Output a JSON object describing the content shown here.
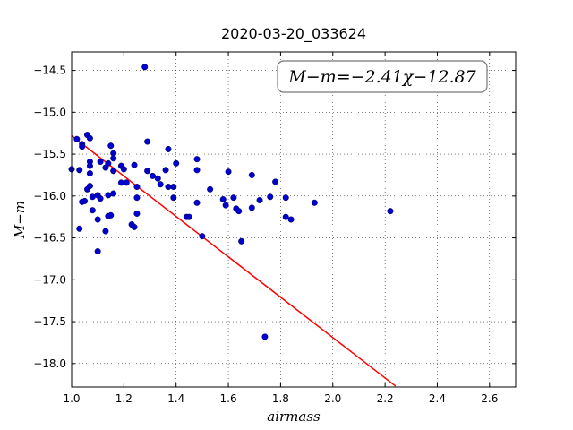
{
  "chart_data": {
    "type": "scatter",
    "title": "2020-03-20_033624",
    "xlabel": "airmass",
    "ylabel": "M−m",
    "xlim": [
      1.0,
      2.7
    ],
    "ylim": [
      -18.28,
      -14.28
    ],
    "xticks": [
      "1.0",
      "1.2",
      "1.4",
      "1.6",
      "1.8",
      "2.0",
      "2.2",
      "2.4",
      "2.6"
    ],
    "yticks": [
      "−14.5",
      "−15.0",
      "−15.5",
      "−16.0",
      "−16.5",
      "−17.0",
      "−17.5",
      "−18.0"
    ],
    "grid": true,
    "annotation": "M−m=−2.41χ−12.87",
    "fit": {
      "slope": -2.41,
      "intercept": -12.87,
      "x_range": [
        1.0,
        2.24
      ]
    },
    "colors": {
      "points": "#0000cc",
      "fit_line": "#ff0000"
    },
    "points": [
      {
        "x": 1.0,
        "y": -15.68
      },
      {
        "x": 1.03,
        "y": -15.69
      },
      {
        "x": 1.02,
        "y": -15.32
      },
      {
        "x": 1.04,
        "y": -15.38
      },
      {
        "x": 1.04,
        "y": -15.41
      },
      {
        "x": 1.06,
        "y": -15.27
      },
      {
        "x": 1.07,
        "y": -15.31
      },
      {
        "x": 1.07,
        "y": -15.59
      },
      {
        "x": 1.07,
        "y": -15.64
      },
      {
        "x": 1.07,
        "y": -15.73
      },
      {
        "x": 1.06,
        "y": -15.92
      },
      {
        "x": 1.07,
        "y": -15.88
      },
      {
        "x": 1.04,
        "y": -16.07
      },
      {
        "x": 1.05,
        "y": -16.06
      },
      {
        "x": 1.08,
        "y": -16.01
      },
      {
        "x": 1.1,
        "y": -15.99
      },
      {
        "x": 1.11,
        "y": -16.03
      },
      {
        "x": 1.08,
        "y": -16.17
      },
      {
        "x": 1.1,
        "y": -16.28
      },
      {
        "x": 1.03,
        "y": -16.39
      },
      {
        "x": 1.1,
        "y": -16.66
      },
      {
        "x": 1.11,
        "y": -15.59
      },
      {
        "x": 1.13,
        "y": -15.66
      },
      {
        "x": 1.14,
        "y": -15.61
      },
      {
        "x": 1.15,
        "y": -15.4
      },
      {
        "x": 1.16,
        "y": -15.49
      },
      {
        "x": 1.16,
        "y": -15.55
      },
      {
        "x": 1.16,
        "y": -15.7
      },
      {
        "x": 1.14,
        "y": -15.99
      },
      {
        "x": 1.16,
        "y": -15.97
      },
      {
        "x": 1.14,
        "y": -16.24
      },
      {
        "x": 1.15,
        "y": -16.23
      },
      {
        "x": 1.13,
        "y": -16.42
      },
      {
        "x": 1.19,
        "y": -15.64
      },
      {
        "x": 1.2,
        "y": -15.68
      },
      {
        "x": 1.19,
        "y": -15.84
      },
      {
        "x": 1.21,
        "y": -15.84
      },
      {
        "x": 1.24,
        "y": -15.63
      },
      {
        "x": 1.25,
        "y": -15.89
      },
      {
        "x": 1.25,
        "y": -16.02
      },
      {
        "x": 1.25,
        "y": -16.21
      },
      {
        "x": 1.23,
        "y": -16.34
      },
      {
        "x": 1.24,
        "y": -16.37
      },
      {
        "x": 1.28,
        "y": -14.46
      },
      {
        "x": 1.29,
        "y": -15.35
      },
      {
        "x": 1.29,
        "y": -15.7
      },
      {
        "x": 1.31,
        "y": -15.76
      },
      {
        "x": 1.33,
        "y": -15.79
      },
      {
        "x": 1.34,
        "y": -15.86
      },
      {
        "x": 1.36,
        "y": -15.69
      },
      {
        "x": 1.37,
        "y": -15.44
      },
      {
        "x": 1.37,
        "y": -15.89
      },
      {
        "x": 1.39,
        "y": -15.89
      },
      {
        "x": 1.39,
        "y": -16.02
      },
      {
        "x": 1.4,
        "y": -15.61
      },
      {
        "x": 1.44,
        "y": -16.25
      },
      {
        "x": 1.45,
        "y": -16.25
      },
      {
        "x": 1.48,
        "y": -15.56
      },
      {
        "x": 1.48,
        "y": -15.69
      },
      {
        "x": 1.48,
        "y": -16.08
      },
      {
        "x": 1.5,
        "y": -16.48
      },
      {
        "x": 1.53,
        "y": -15.92
      },
      {
        "x": 1.58,
        "y": -16.04
      },
      {
        "x": 1.59,
        "y": -16.11
      },
      {
        "x": 1.6,
        "y": -15.71
      },
      {
        "x": 1.62,
        "y": -16.02
      },
      {
        "x": 1.63,
        "y": -16.15
      },
      {
        "x": 1.64,
        "y": -16.18
      },
      {
        "x": 1.65,
        "y": -16.54
      },
      {
        "x": 1.69,
        "y": -15.75
      },
      {
        "x": 1.69,
        "y": -16.14
      },
      {
        "x": 1.72,
        "y": -16.05
      },
      {
        "x": 1.74,
        "y": -17.68
      },
      {
        "x": 1.76,
        "y": -16.01
      },
      {
        "x": 1.78,
        "y": -15.83
      },
      {
        "x": 1.82,
        "y": -16.02
      },
      {
        "x": 1.82,
        "y": -16.25
      },
      {
        "x": 1.84,
        "y": -16.28
      },
      {
        "x": 1.93,
        "y": -16.08
      },
      {
        "x": 2.22,
        "y": -16.18
      }
    ]
  }
}
